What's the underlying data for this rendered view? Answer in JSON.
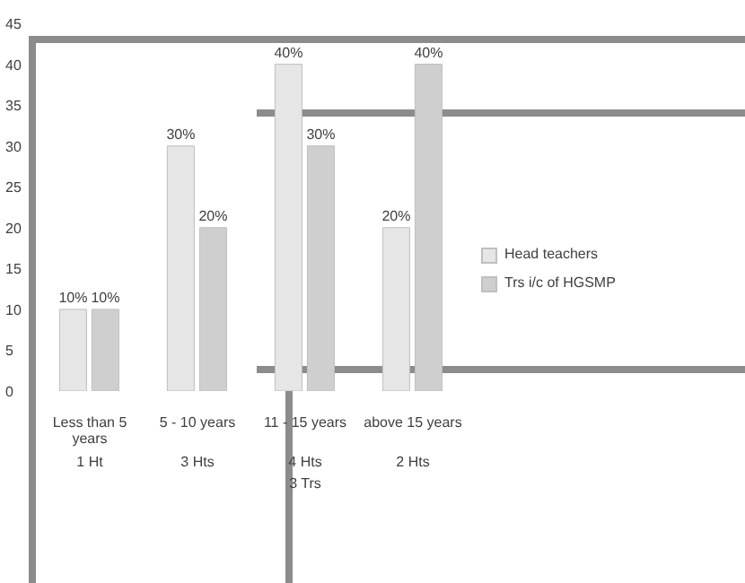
{
  "chart_data": {
    "type": "bar",
    "categories": [
      "Less than 5 years",
      "5 - 10 years",
      "11 - 15 years",
      "above 15 years"
    ],
    "series": [
      {
        "name": "Head teachers",
        "color": "#e6e6e6",
        "values": [
          10,
          30,
          40,
          20
        ],
        "value_labels": [
          "10%",
          "30%",
          "40%",
          "20%"
        ]
      },
      {
        "name": "Trs i/c  of HGSMP",
        "color": "#cfcfcf",
        "values": [
          10,
          20,
          30,
          40
        ],
        "value_labels": [
          "10%",
          "20%",
          "30%",
          "40%"
        ]
      }
    ],
    "ylim": [
      0,
      45
    ],
    "yticks": [
      0,
      5,
      10,
      15,
      20,
      25,
      30,
      35,
      40,
      45
    ],
    "grid": false,
    "legend": "right",
    "annotations": [
      "1 Ht",
      "3 Hts",
      "4 Hts",
      "3 Trs",
      "2 Hts"
    ]
  }
}
